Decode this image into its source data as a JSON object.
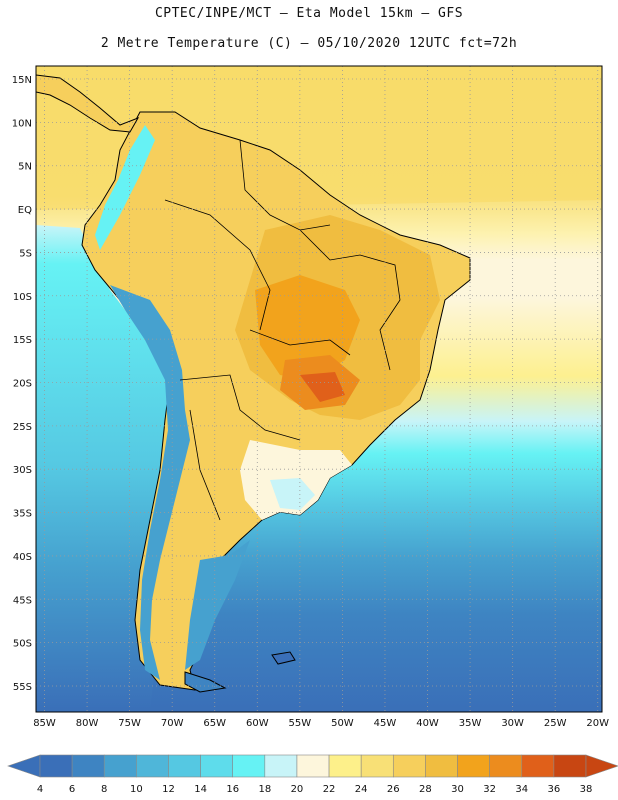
{
  "header": {
    "line1": "CPTEC/INPE/MCT –  Eta Model 15km – GFS",
    "line2": "2 Metre Temperature (C) – 05/10/2020 12UTC fct=72h"
  },
  "map": {
    "lat_labels": [
      "15N",
      "10N",
      "5N",
      "EQ",
      "5S",
      "10S",
      "15S",
      "20S",
      "25S",
      "30S",
      "35S",
      "40S",
      "45S",
      "50S",
      "55S"
    ],
    "lon_labels": [
      "85W",
      "80W",
      "75W",
      "70W",
      "65W",
      "60W",
      "55W",
      "50W",
      "45W",
      "40W",
      "35W",
      "30W",
      "25W",
      "20W"
    ],
    "lat_values": [
      15,
      10,
      5,
      0,
      -5,
      -10,
      -15,
      -20,
      -25,
      -30,
      -35,
      -40,
      -45,
      -50,
      -55
    ],
    "lon_values": [
      -85,
      -80,
      -75,
      -70,
      -65,
      -60,
      -55,
      -50,
      -45,
      -40,
      -35,
      -30,
      -25,
      -20
    ],
    "extent": {
      "lon_min": -86,
      "lon_max": -19.5,
      "lat_min": -58,
      "lat_max": 16.5
    }
  },
  "colorbar": {
    "labels": [
      "4",
      "6",
      "8",
      "10",
      "12",
      "14",
      "16",
      "18",
      "20",
      "22",
      "24",
      "26",
      "28",
      "30",
      "32",
      "34",
      "36",
      "38"
    ],
    "colors": [
      "#3a6fb8",
      "#3e84c2",
      "#46a1cf",
      "#4fb6d9",
      "#55c8e2",
      "#5edceb",
      "#66f2f4",
      "#c8f4f8",
      "#fdf6dc",
      "#fdf08a",
      "#f8e076",
      "#f6cf5c",
      "#f0bd40",
      "#f2a31c",
      "#ec8c1e",
      "#e0601a",
      "#c84612"
    ],
    "low_color": "#3a6fb8",
    "high_color": "#c84612"
  }
}
